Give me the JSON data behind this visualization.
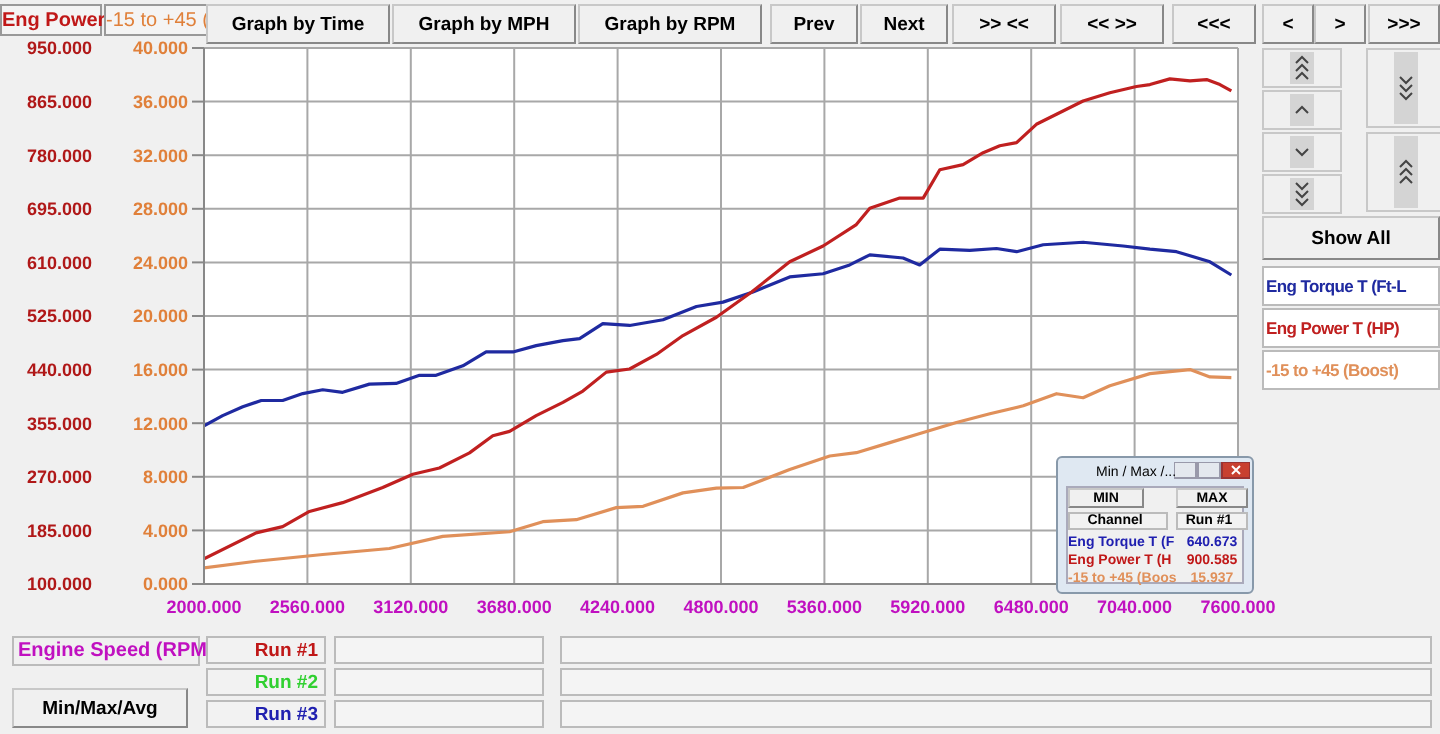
{
  "chart_data": {
    "type": "line",
    "xlabel": "Engine Speed (RPM",
    "ylabel": "Eng Power",
    "y2label": "-15 to +45 (",
    "xlim": [
      2000,
      7600
    ],
    "xticks": [
      {
        "value": 2000,
        "label": "2000.000"
      },
      {
        "value": 2560,
        "label": "2560.000"
      },
      {
        "value": 3120,
        "label": "3120.000"
      },
      {
        "value": 3680,
        "label": "3680.000"
      },
      {
        "value": 4240,
        "label": "4240.000"
      },
      {
        "value": 4800,
        "label": "4800.000"
      },
      {
        "value": 5360,
        "label": "5360.000"
      },
      {
        "value": 5920,
        "label": "5920.000"
      },
      {
        "value": 6480,
        "label": "6480.000"
      },
      {
        "value": 7040,
        "label": "7040.000"
      },
      {
        "value": 7600,
        "label": "7600.000"
      }
    ],
    "ylim": [
      100,
      950
    ],
    "yticks": [
      {
        "value": 100,
        "label": "100.000"
      },
      {
        "value": 185,
        "label": "185.000"
      },
      {
        "value": 270,
        "label": "270.000"
      },
      {
        "value": 355,
        "label": "355.000"
      },
      {
        "value": 440,
        "label": "440.000"
      },
      {
        "value": 525,
        "label": "525.000"
      },
      {
        "value": 610,
        "label": "610.000"
      },
      {
        "value": 695,
        "label": "695.000"
      },
      {
        "value": 780,
        "label": "780.000"
      },
      {
        "value": 865,
        "label": "865.000"
      },
      {
        "value": 950,
        "label": "950.000"
      }
    ],
    "y2lim": [
      0,
      40
    ],
    "y2ticks": [
      {
        "value": 0,
        "label": "0.000"
      },
      {
        "value": 4,
        "label": "4.000"
      },
      {
        "value": 8,
        "label": "8.000"
      },
      {
        "value": 12,
        "label": "12.000"
      },
      {
        "value": 16,
        "label": "16.000"
      },
      {
        "value": 20,
        "label": "20.000"
      },
      {
        "value": 24,
        "label": "24.000"
      },
      {
        "value": 28,
        "label": "28.000"
      },
      {
        "value": 32,
        "label": "32.000"
      },
      {
        "value": 36,
        "label": "36.000"
      },
      {
        "value": 40,
        "label": "40.000"
      }
    ],
    "grid": true,
    "legend": "right",
    "line_style": "solid",
    "series": [
      {
        "name": "Eng Torque T (Ft-L",
        "color": "#1f2aa0",
        "x": [
          2000,
          2101,
          2210,
          2310,
          2426,
          2535,
          2643,
          2751,
          2896,
          3040,
          3167,
          3257,
          3402,
          3528,
          3673,
          3799,
          3944,
          4034,
          4160,
          4305,
          4486,
          4667,
          4811,
          4973,
          5172,
          5353,
          5497,
          5606,
          5786,
          5876,
          5985,
          6147,
          6292,
          6401,
          6545,
          6761,
          6978,
          7123,
          7267,
          7448,
          7564
        ],
        "values": [
          351,
          367,
          381,
          391,
          391,
          402,
          408,
          404,
          417,
          418,
          431,
          431,
          446,
          468,
          468,
          478,
          486,
          489,
          513,
          510,
          519,
          540,
          547,
          563,
          587,
          592,
          606,
          622,
          617,
          606,
          631,
          629,
          632,
          627,
          638,
          642,
          636,
          631,
          627,
          611,
          590
        ]
      },
      {
        "name": "Eng Power T (HP)",
        "color": "#c02020",
        "x": [
          2000,
          2282,
          2426,
          2571,
          2751,
          2968,
          3131,
          3275,
          3438,
          3564,
          3655,
          3799,
          3944,
          4052,
          4179,
          4305,
          4450,
          4594,
          4775,
          4966,
          5172,
          5353,
          5533,
          5606,
          5768,
          5895,
          5985,
          6111,
          6220,
          6310,
          6401,
          6508,
          6617,
          6761,
          6906,
          7050,
          7123,
          7231,
          7340,
          7430,
          7502,
          7564
        ],
        "values": [
          140,
          181,
          191,
          215,
          229,
          253,
          274,
          284,
          308,
          335,
          342,
          367,
          388,
          406,
          436,
          441,
          464,
          494,
          523,
          563,
          611,
          636,
          670,
          696,
          712,
          712,
          757,
          765,
          784,
          795,
          800,
          829,
          845,
          866,
          879,
          889,
          892,
          901,
          898,
          900,
          892,
          882
        ]
      },
      {
        "name": "-15 to +45 (Boost)",
        "color": "#e0905a",
        "axis": "y2",
        "x": [
          2000,
          2282,
          2643,
          3004,
          3293,
          3655,
          3835,
          4016,
          4233,
          4378,
          4594,
          4775,
          4920,
          5172,
          5389,
          5533,
          5714,
          5895,
          6075,
          6256,
          6437,
          6617,
          6761,
          6906,
          7123,
          7340,
          7448,
          7564
        ],
        "values": [
          1.2,
          1.7,
          2.2,
          2.65,
          3.55,
          3.9,
          4.65,
          4.8,
          5.7,
          5.8,
          6.8,
          7.15,
          7.2,
          8.55,
          9.55,
          9.8,
          10.55,
          11.3,
          12.05,
          12.7,
          13.3,
          14.2,
          13.9,
          14.8,
          15.7,
          16.0,
          15.45,
          15.4
        ]
      }
    ],
    "annotations": [
      "Graph by Time",
      "Graph by MPH",
      "Graph by RPM",
      "Prev",
      "Next",
      ">> <<",
      "<< >>",
      "<<<",
      "<",
      ">",
      ">>>",
      "Show All",
      "Run #1",
      "Run #2",
      "Run #3",
      "Min/Max/Avg",
      "Min / Max /...",
      "MIN",
      "MAX",
      "Channel",
      "Run #1",
      "Eng Torque T (F",
      "640.673",
      "Eng Power T (H",
      "900.585",
      "-15 to +45 (Boos",
      "15.937"
    ]
  }
}
